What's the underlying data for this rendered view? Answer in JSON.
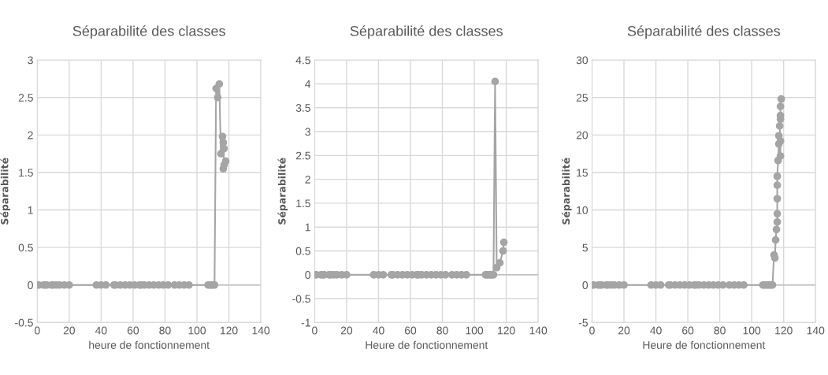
{
  "chart_data": [
    {
      "type": "line",
      "title": "Séparabilité des classes",
      "xlabel": "heure de fonctionnement",
      "ylabel": "Séparabilité",
      "marker": "circle",
      "line_style": "solid",
      "grid": true,
      "xlim": [
        0,
        140
      ],
      "xticks": [
        0,
        20,
        40,
        60,
        80,
        100,
        120,
        140
      ],
      "ylim": [
        -0.5,
        3
      ],
      "yticks": [
        -0.5,
        0,
        0.5,
        1,
        1.5,
        2,
        2.5,
        3
      ],
      "series": [
        {
          "color": "#a5a5a5",
          "x": [
            0,
            1,
            4,
            5,
            6,
            9,
            10,
            12,
            14,
            17,
            20,
            37,
            40,
            43,
            48,
            49,
            52,
            55,
            58,
            61,
            64,
            65,
            67,
            70,
            73,
            76,
            79,
            82,
            86,
            89,
            92,
            95,
            107,
            108,
            109,
            110,
            111,
            112,
            113,
            114,
            115,
            116,
            116.5,
            117,
            116.5,
            117,
            118
          ],
          "values": [
            0,
            0,
            0,
            0,
            0,
            0,
            0,
            0,
            0,
            0,
            0,
            0,
            0,
            0,
            0,
            0,
            0,
            0,
            0,
            0,
            0,
            0,
            0,
            0,
            0,
            0,
            0,
            0,
            0,
            0,
            0,
            0,
            0,
            0,
            0,
            0,
            0,
            2.62,
            2.5,
            2.68,
            1.75,
            1.98,
            1.9,
            1.82,
            1.55,
            1.6,
            1.65
          ]
        }
      ]
    },
    {
      "type": "line",
      "title": "Séparabilité des classes",
      "xlabel": "Heure de fonctionnement",
      "ylabel": "Séparabilité",
      "marker": "circle",
      "line_style": "solid",
      "grid": true,
      "xlim": [
        0,
        140
      ],
      "xticks": [
        0,
        20,
        40,
        60,
        80,
        100,
        120,
        140
      ],
      "ylim": [
        -1,
        4.5
      ],
      "yticks": [
        -1,
        -0.5,
        0,
        0.5,
        1,
        1.5,
        2,
        2.5,
        3,
        3.5,
        4,
        4.5
      ],
      "series": [
        {
          "color": "#a5a5a5",
          "x": [
            0,
            1,
            4,
            5,
            6,
            9,
            10,
            12,
            14,
            17,
            20,
            37,
            40,
            43,
            48,
            49,
            52,
            55,
            58,
            61,
            64,
            65,
            67,
            70,
            73,
            76,
            79,
            82,
            86,
            89,
            92,
            95,
            107,
            108,
            109,
            110,
            111,
            112,
            113,
            114,
            116,
            118,
            118.5
          ],
          "values": [
            0,
            0,
            0,
            0,
            0,
            0,
            0,
            0,
            0,
            0,
            0,
            0,
            0,
            0,
            0,
            0,
            0,
            0,
            0,
            0,
            0,
            0,
            0,
            0,
            0,
            0,
            0,
            0,
            0,
            0,
            0,
            0,
            0,
            0,
            0,
            0,
            0,
            0,
            4.05,
            0.15,
            0.25,
            0.5,
            0.68
          ]
        }
      ]
    },
    {
      "type": "line",
      "title": "Séparabilité des classes",
      "xlabel": "Heure de fonctionnement",
      "ylabel": "Séparabilité",
      "marker": "circle",
      "line_style": "solid",
      "grid": true,
      "xlim": [
        0,
        140
      ],
      "xticks": [
        0,
        20,
        40,
        60,
        80,
        100,
        120,
        140
      ],
      "ylim": [
        -5,
        30
      ],
      "yticks": [
        -5,
        0,
        5,
        10,
        15,
        20,
        25,
        30
      ],
      "series": [
        {
          "color": "#a5a5a5",
          "x": [
            0,
            1,
            4,
            5,
            6,
            9,
            10,
            12,
            14,
            17,
            20,
            37,
            40,
            43,
            48,
            49,
            52,
            55,
            58,
            61,
            64,
            65,
            67,
            70,
            73,
            76,
            79,
            82,
            86,
            89,
            92,
            95,
            107,
            108,
            109,
            110,
            111,
            112,
            113,
            114,
            114.5,
            115,
            115.5,
            116,
            116,
            116,
            116,
            116,
            116.5,
            117,
            117,
            118,
            118,
            117.5,
            118,
            118,
            118,
            118.5
          ],
          "values": [
            0,
            0,
            0,
            0,
            0,
            0,
            0,
            0,
            0,
            0,
            0,
            0,
            0,
            0,
            0,
            0,
            0,
            0,
            0,
            0,
            0,
            0,
            0,
            0,
            0,
            0,
            0,
            0,
            0,
            0,
            0,
            0,
            0,
            0,
            0,
            0,
            0,
            0,
            0,
            4,
            3.6,
            6,
            7.4,
            8.4,
            9.5,
            11.5,
            13.3,
            14.5,
            16.6,
            18.8,
            19.9,
            17.2,
            19.2,
            21.2,
            22.1,
            22.6,
            23.8,
            24.8
          ]
        }
      ]
    }
  ]
}
